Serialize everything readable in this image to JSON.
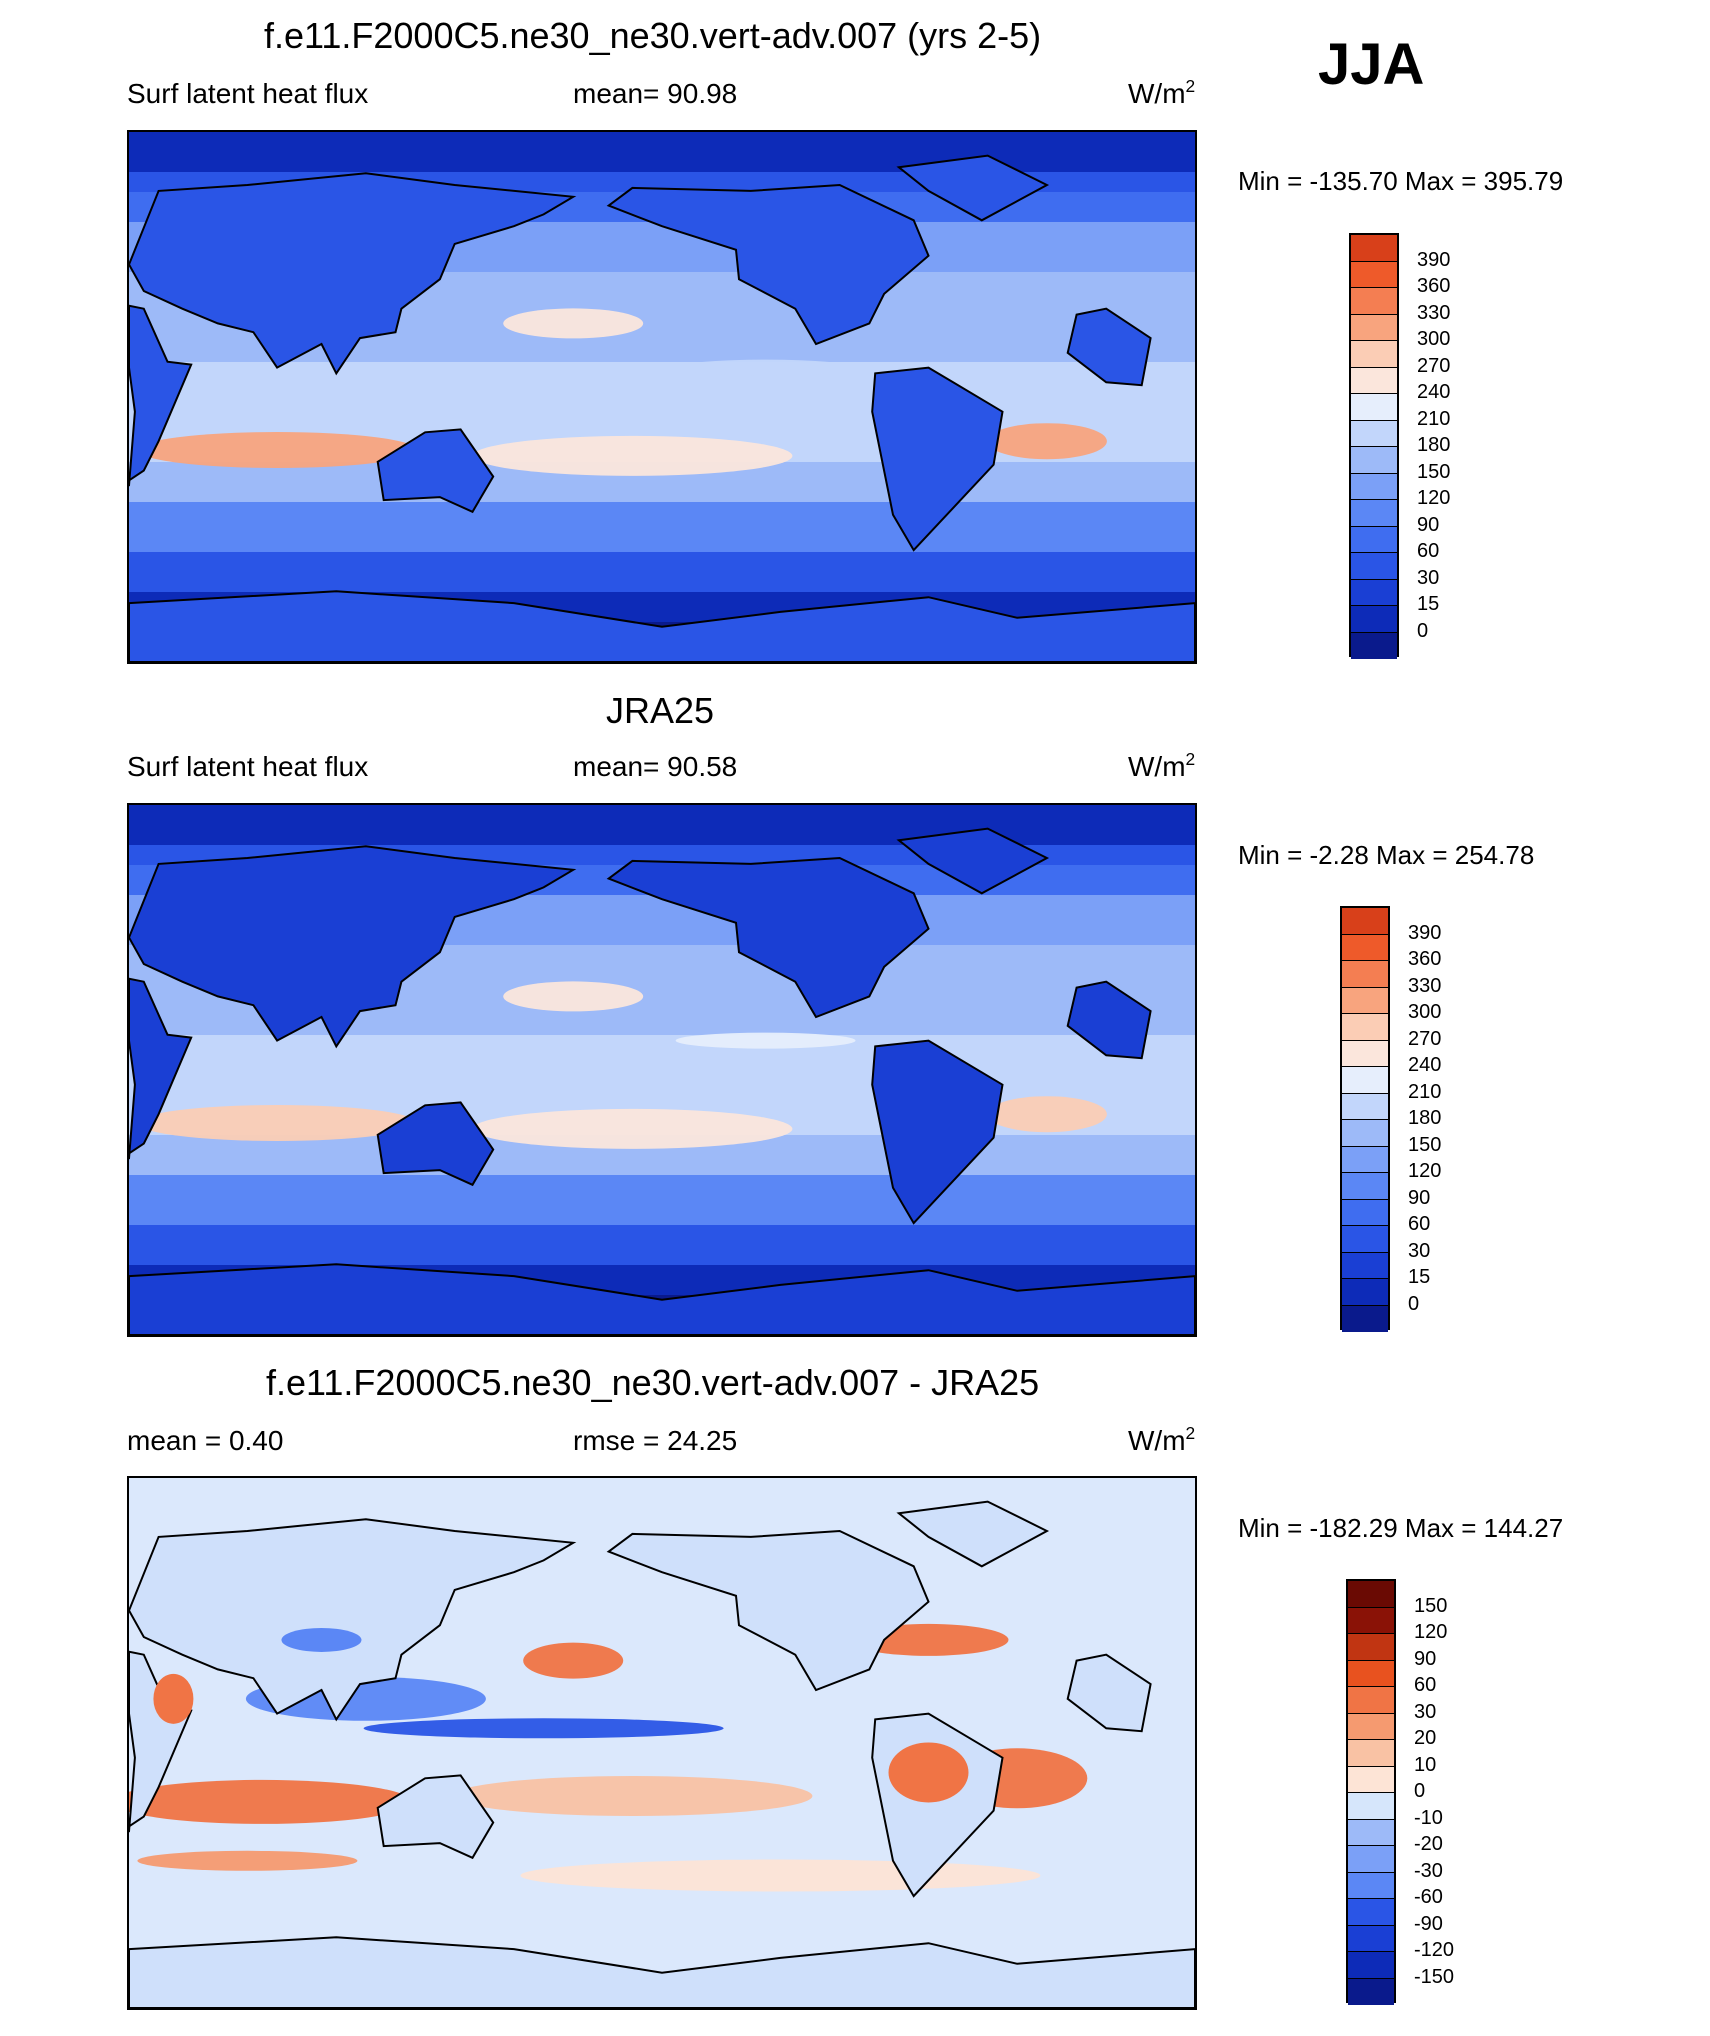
{
  "season": "JJA",
  "panels": [
    {
      "title": "f.e11.F2000C5.ne30_ne30.vert-adv.007 (yrs 2-5)",
      "left_label": "Surf latent heat flux",
      "center_label": "mean=  90.98",
      "units": "W/m",
      "units_sup": "2",
      "minmax": "Min = -135.70 Max = 395.79",
      "colorbar_labels": [
        "390",
        "360",
        "330",
        "300",
        "270",
        "240",
        "210",
        "180",
        "150",
        "120",
        "90",
        "60",
        "30",
        "15",
        "0"
      ]
    },
    {
      "title": "JRA25",
      "left_label": "Surf latent heat flux",
      "center_label": "mean=  90.58",
      "units": "W/m",
      "units_sup": "2",
      "minmax": "Min =  -2.28 Max = 254.78",
      "colorbar_labels": [
        "390",
        "360",
        "330",
        "300",
        "270",
        "240",
        "210",
        "180",
        "150",
        "120",
        "90",
        "60",
        "30",
        "15",
        "0"
      ]
    },
    {
      "title": "f.e11.F2000C5.ne30_ne30.vert-adv.007 - JRA25",
      "left_label": "mean =   0.40",
      "center_label": "rmse =  24.25",
      "units": "W/m",
      "units_sup": "2",
      "minmax": "Min = -182.29 Max = 144.27",
      "colorbar_labels": [
        "150",
        "120",
        "90",
        "60",
        "30",
        "20",
        "10",
        "0",
        "-10",
        "-20",
        "-30",
        "-60",
        "-90",
        "-120",
        "-150"
      ]
    }
  ],
  "colors": {
    "seq": [
      "#0a1a8c",
      "#0d2bb8",
      "#1a3fd4",
      "#2a55e6",
      "#3f6df0",
      "#5b87f5",
      "#7ba0f7",
      "#9dbaf8",
      "#c2d6fb",
      "#e6eefc",
      "#fbe6dc",
      "#fbcdb5",
      "#f8a47e",
      "#f47e52",
      "#ee5a2a",
      "#d8401a",
      "#a9220e",
      "#7d0e05"
    ],
    "diff": [
      "#0a1a8c",
      "#0d2bb8",
      "#1a3fd4",
      "#2a55e6",
      "#5b87f5",
      "#7ba0f7",
      "#9dbaf8",
      "#d6e6fb",
      "#fde4d6",
      "#f9c2a4",
      "#f59a70",
      "#f07445",
      "#e8521f",
      "#c13512",
      "#8a1206"
    ]
  },
  "chart_data": [
    {
      "type": "heatmap",
      "title": "f.e11.F2000C5.ne30_ne30.vert-adv.007 (yrs 2-5)",
      "variable": "Surf latent heat flux",
      "season": "JJA",
      "mean": 90.98,
      "min": -135.7,
      "max": 395.79,
      "units": "W/m2",
      "contour_levels": [
        0,
        15,
        30,
        60,
        90,
        120,
        150,
        180,
        210,
        240,
        270,
        300,
        330,
        360,
        390
      ]
    },
    {
      "type": "heatmap",
      "title": "JRA25",
      "variable": "Surf latent heat flux",
      "season": "JJA",
      "mean": 90.58,
      "min": -2.28,
      "max": 254.78,
      "units": "W/m2",
      "contour_levels": [
        0,
        15,
        30,
        60,
        90,
        120,
        150,
        180,
        210,
        240,
        270,
        300,
        330,
        360,
        390
      ]
    },
    {
      "type": "heatmap",
      "title": "f.e11.F2000C5.ne30_ne30.vert-adv.007 - JRA25",
      "season": "JJA",
      "mean": 0.4,
      "rmse": 24.25,
      "min": -182.29,
      "max": 144.27,
      "units": "W/m2",
      "contour_levels": [
        -150,
        -120,
        -90,
        -60,
        -30,
        -20,
        -10,
        0,
        10,
        20,
        30,
        60,
        90,
        120,
        150
      ]
    }
  ]
}
